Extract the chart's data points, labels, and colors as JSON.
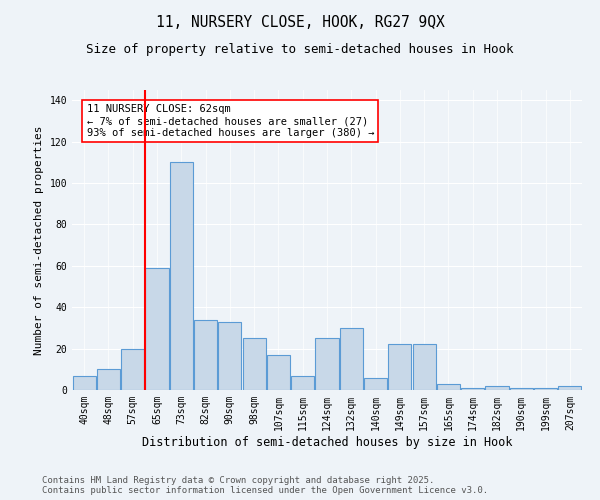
{
  "title1": "11, NURSERY CLOSE, HOOK, RG27 9QX",
  "title2": "Size of property relative to semi-detached houses in Hook",
  "xlabel": "Distribution of semi-detached houses by size in Hook",
  "ylabel": "Number of semi-detached properties",
  "categories": [
    "40sqm",
    "48sqm",
    "57sqm",
    "65sqm",
    "73sqm",
    "82sqm",
    "90sqm",
    "98sqm",
    "107sqm",
    "115sqm",
    "124sqm",
    "132sqm",
    "140sqm",
    "149sqm",
    "157sqm",
    "165sqm",
    "174sqm",
    "182sqm",
    "190sqm",
    "199sqm",
    "207sqm"
  ],
  "values": [
    7,
    10,
    20,
    59,
    110,
    34,
    33,
    25,
    17,
    7,
    25,
    30,
    6,
    22,
    22,
    3,
    1,
    2,
    1,
    1,
    2
  ],
  "bar_color": "#c8d8e8",
  "bar_edge_color": "#5b9bd5",
  "marker_label": "11 NURSERY CLOSE: 62sqm",
  "annotation_line1": "← 7% of semi-detached houses are smaller (27)",
  "annotation_line2": "93% of semi-detached houses are larger (380) →",
  "annotation_box_color": "white",
  "annotation_box_edge_color": "red",
  "vline_color": "red",
  "vline_x_index": 3,
  "ylim": [
    0,
    145
  ],
  "yticks": [
    0,
    20,
    40,
    60,
    80,
    100,
    120,
    140
  ],
  "bg_color": "#eef3f8",
  "grid_color": "white",
  "footer1": "Contains HM Land Registry data © Crown copyright and database right 2025.",
  "footer2": "Contains public sector information licensed under the Open Government Licence v3.0.",
  "title1_fontsize": 10.5,
  "title2_fontsize": 9,
  "xlabel_fontsize": 8.5,
  "ylabel_fontsize": 8,
  "tick_fontsize": 7,
  "footer_fontsize": 6.5,
  "annot_fontsize": 7.5
}
